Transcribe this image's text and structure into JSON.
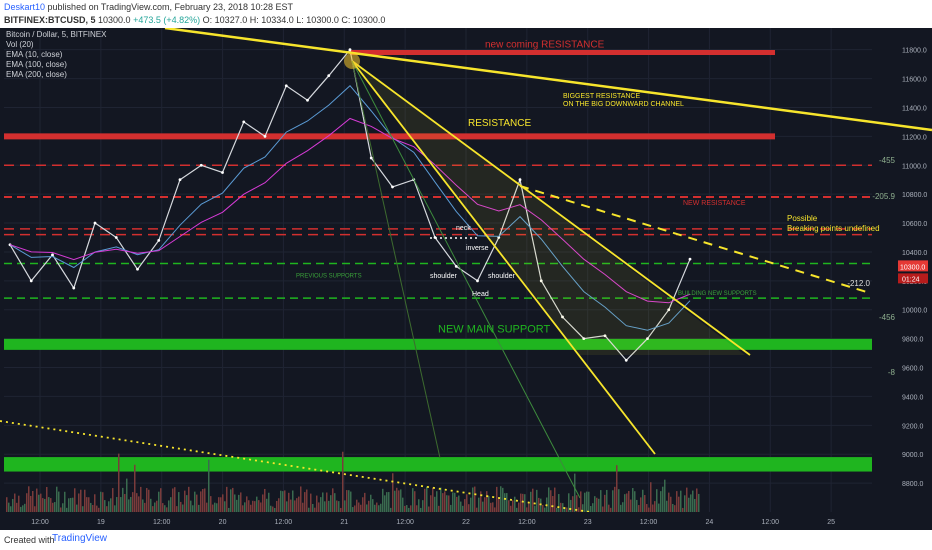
{
  "header": {
    "author": "Deskart10",
    "published": "published on TradingView.com, February 23, 2018 10:28 EST",
    "symbol": "BITFINEX:BTCUSD, 5",
    "last": "10300.0",
    "change": "+473.5 (+4.82%)",
    "open": "O: 10327.0",
    "high": "H: 10334.0",
    "low": "L: 10300.0",
    "close": "C: 10300.0"
  },
  "legend": {
    "title": "Bitcoin / Dollar, 5, BITFINEX",
    "vol": "Vol (20)",
    "ema10": "EMA (10, close)",
    "ema100": "EMA (100, close)",
    "ema200": "EMA (200, close)"
  },
  "footer": {
    "created": "Created with",
    "brand": "TradingView"
  },
  "colors": {
    "background": "#131722",
    "resistance": "#d32f2f",
    "support": "#1fb51f",
    "trend": "#f7e52c",
    "ema10": "#ffffff",
    "ema100": "#5b9bd5",
    "ema200": "#d63bd6",
    "price_label": "#e53935"
  },
  "chart_data": {
    "type": "line",
    "title": "Bitcoin / Dollar, 5, BITFINEX",
    "xlabel": "",
    "ylabel": "",
    "ylim": [
      8600,
      11950
    ],
    "x_ticks": [
      "12:00",
      "19",
      "12:00",
      "20",
      "12:00",
      "21",
      "12:00",
      "22",
      "12:00",
      "23",
      "12:00",
      "24",
      "12:00",
      "25"
    ],
    "y_ticks": [
      8800,
      9000,
      9200,
      9400,
      9600,
      9800,
      10000,
      10200,
      10400,
      10600,
      10800,
      11000,
      11200,
      11400,
      11600,
      11800
    ],
    "series": [
      {
        "name": "Bitcoin / Dollar",
        "values": [
          10450,
          10200,
          10380,
          10150,
          10600,
          10500,
          10280,
          10480,
          10900,
          11000,
          10950,
          11300,
          11200,
          11550,
          11450,
          11620,
          11800,
          11050,
          10850,
          10900,
          10500,
          10300,
          10200,
          10500,
          10900,
          10200,
          9950,
          9800,
          9820,
          9650,
          9800,
          10000,
          10350
        ]
      }
    ],
    "levels": [
      {
        "label": "new coming RESISTANCE",
        "value": 11780
      },
      {
        "label": "RESISTANCE",
        "value": 11200
      },
      {
        "label": "NEW RESISTANCE",
        "value": 10780
      },
      {
        "label": "NEW MAIN SUPPORT",
        "value": 9760
      },
      {
        "label": "BUILDING NEW SUPPORTS",
        "value": 10080
      },
      {
        "label": "PREVIOUS SUPPORTS",
        "value": 10320
      }
    ],
    "annotations": [
      "BIGGEST RESISTANCE ON THE BIG DOWNWARD CHANNEL",
      "Possible Breaking points",
      "shoulder",
      "Head",
      "shoulder",
      "neck",
      "inverse"
    ],
    "fib_labels": [
      "-455",
      "-205.9",
      "-212.0",
      "-456",
      "-8"
    ],
    "current_price": "10300.0",
    "countdown": "01:24"
  }
}
